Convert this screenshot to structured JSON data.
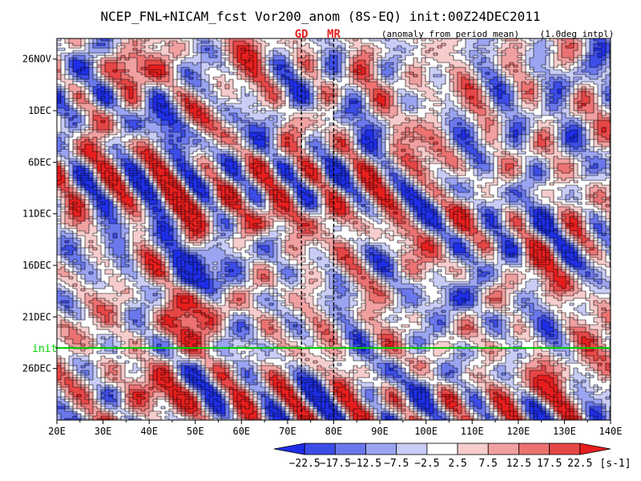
{
  "chart_data": {
    "type": "heatmap",
    "title": "NCEP_FNL+NICAM_fcst Vor200_anom (8S-EQ) init:00Z24DEC2011",
    "subtitle_left": "(anomaly from period mean)",
    "subtitle_right": "(1.0deg intpl)",
    "x_ticks": [
      "20E",
      "30E",
      "40E",
      "50E",
      "60E",
      "70E",
      "80E",
      "90E",
      "100E",
      "110E",
      "120E",
      "130E",
      "140E"
    ],
    "x_range": [
      20,
      140
    ],
    "y_ticks": [
      {
        "label": "26NOV",
        "day": 0
      },
      {
        "label": "1DEC",
        "day": 5
      },
      {
        "label": "6DEC",
        "day": 10
      },
      {
        "label": "11DEC",
        "day": 15
      },
      {
        "label": "16DEC",
        "day": 20
      },
      {
        "label": "21DEC",
        "day": 25
      },
      {
        "label": "26DEC",
        "day": 30
      }
    ],
    "y_range_days": [
      -2,
      35
    ],
    "markers": [
      {
        "label": "GD",
        "lon": 73
      },
      {
        "label": "MR",
        "lon": 80
      }
    ],
    "init_line": {
      "label": "init",
      "day": 28
    },
    "colorbar": {
      "ticks": [
        "−22.5",
        "−17.5",
        "−12.5",
        "−7.5",
        "−2.5",
        "2.5",
        "7.5",
        "12.5",
        "17.5",
        "22.5"
      ],
      "unit": "[s-1]",
      "colors": [
        "#1e2ee6",
        "#3c4ce6",
        "#6a78ec",
        "#9aa4f0",
        "#c9cdf6",
        "#ffffff",
        "#f6cccc",
        "#f0a0a0",
        "#ec7272",
        "#e64646",
        "#e61e1e"
      ]
    },
    "features": [
      {
        "lon": 50,
        "day": 14,
        "value": 22
      },
      {
        "lon": 64,
        "day": 16,
        "value": 14
      },
      {
        "lon": 75,
        "day": 15,
        "value": 15
      },
      {
        "lon": 52,
        "day": 21,
        "value": -23
      },
      {
        "lon": 55,
        "day": 19,
        "value": -16
      },
      {
        "lon": 50,
        "day": 24,
        "value": 20
      },
      {
        "lon": 45,
        "day": 26,
        "value": 16
      },
      {
        "lon": 24,
        "day": 4,
        "value": -15
      },
      {
        "lon": 40,
        "day": 6,
        "value": -10
      },
      {
        "lon": 48,
        "day": 8,
        "value": -12
      },
      {
        "lon": 30,
        "day": 9,
        "value": 14
      },
      {
        "lon": 115,
        "day": 13,
        "value": -12
      },
      {
        "lon": 105,
        "day": 23,
        "value": -14
      },
      {
        "lon": 118,
        "day": 25,
        "value": -10
      },
      {
        "lon": 130,
        "day": 22,
        "value": 12
      },
      {
        "lon": 100,
        "day": 31,
        "value": -12
      },
      {
        "lon": 45,
        "day": 33,
        "value": 20
      },
      {
        "lon": 30,
        "day": 31,
        "value": 15
      },
      {
        "lon": 120,
        "day": 32,
        "value": 16
      },
      {
        "lon": 135,
        "day": 30,
        "value": 15
      },
      {
        "lon": 95,
        "day": 3,
        "value": 12
      },
      {
        "lon": 120,
        "day": 7,
        "value": -10
      },
      {
        "lon": 90,
        "day": 17,
        "value": 10
      },
      {
        "lon": 38,
        "day": 1,
        "value": 18
      },
      {
        "lon": 60,
        "day": -1,
        "value": 12
      },
      {
        "lon": 130,
        "day": 2,
        "value": -11
      },
      {
        "lon": 100,
        "day": 10,
        "value": 11
      },
      {
        "lon": 35,
        "day": 17,
        "value": -12
      },
      {
        "lon": 130,
        "day": 16,
        "value": -8
      },
      {
        "lon": 80,
        "day": 5,
        "value": -9
      }
    ]
  }
}
